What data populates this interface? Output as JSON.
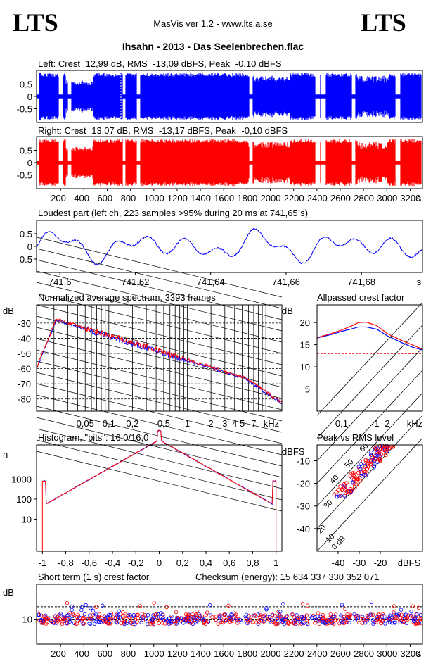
{
  "header": {
    "logo_left": "LTS",
    "logo_right": "LTS",
    "app_title": "MasVis ver 1.2 - www.lts.a.se",
    "file_title": "Ihsahn - 2013 - Das Seelenbrechen.flac"
  },
  "colors": {
    "left": "#0000ff",
    "right": "#ff0000",
    "axis": "#000000"
  },
  "chart_data": [
    {
      "type": "area",
      "id": "left_wave",
      "title": "Left: Crest=12,99 dB, RMS=-13,09 dBFS, Peak=-0,10 dBFS",
      "yticks": [
        "0.5",
        "0",
        "-0.5"
      ],
      "ylim": [
        -1,
        1
      ]
    },
    {
      "type": "area",
      "id": "right_wave",
      "title": "Right: Crest=13,07 dB, RMS=-13,17 dBFS, Peak=-0,10 dBFS",
      "yticks": [
        "0.5",
        "0",
        "-0.5"
      ],
      "ylim": [
        -1,
        1
      ],
      "xticks": [
        "200",
        "400",
        "600",
        "800",
        "1000",
        "1200",
        "1400",
        "1600",
        "1800",
        "2000",
        "2200",
        "2400",
        "2600",
        "2800",
        "3000",
        "3200"
      ],
      "xunit": "s",
      "xlim": [
        0,
        3300
      ]
    },
    {
      "type": "line",
      "id": "loudest",
      "title": "Loudest part (left  ch, 223 samples >95% during 20 ms at 741,65 s)",
      "yticks": [
        "0.5",
        "0",
        "-0.5"
      ],
      "xticks": [
        "741,6",
        "741,62",
        "741,64",
        "741,66",
        "741,68"
      ],
      "xunit": "s",
      "xlim": [
        741.594,
        741.696
      ]
    },
    {
      "type": "line",
      "id": "spectrum",
      "title": "Normalized average spectrum, 3393 frames",
      "ylabel": "dB",
      "yticks": [
        "-30",
        "-40",
        "-50",
        "-60",
        "-70",
        "-80"
      ],
      "xticks": [
        "0,05",
        "0,1",
        "0,2",
        "0,5",
        "1",
        "2",
        "3",
        "4",
        "5",
        "7"
      ],
      "xunit": "kHz"
    },
    {
      "type": "line",
      "id": "crest",
      "title": "Allpassed crest factor",
      "ylabel": "dB",
      "yticks": [
        "20",
        "15",
        "10",
        "5"
      ],
      "ylim": [
        0,
        24
      ],
      "xticks": [
        "0,1",
        "1",
        "2"
      ],
      "xunit": "kHz",
      "series": [
        {
          "name": "left",
          "x": [
            0.02,
            0.05,
            0.1,
            0.2,
            0.3,
            0.5,
            1,
            2,
            5,
            10,
            20
          ],
          "values": [
            16.5,
            17.3,
            18.0,
            18.6,
            19.0,
            19.0,
            18.5,
            17.0,
            15.5,
            14.5,
            13.8
          ]
        },
        {
          "name": "right",
          "x": [
            0.02,
            0.05,
            0.1,
            0.2,
            0.3,
            0.5,
            1,
            2,
            5,
            10,
            20
          ],
          "values": [
            16.6,
            17.5,
            18.3,
            19.3,
            20.0,
            20.1,
            19.3,
            17.5,
            16.0,
            15.0,
            14.0
          ]
        }
      ],
      "reference": 13
    },
    {
      "type": "line",
      "id": "histogram",
      "title": "Histogram, \"bits\": 16,0/16,0",
      "ylabel": "n",
      "yticks": [
        "1000",
        "100",
        "10"
      ],
      "xticks": [
        "-1",
        "-0,8",
        "-0,6",
        "-0,4",
        "-0,2",
        "0",
        "0,2",
        "0,4",
        "0,6",
        "0,8",
        "1"
      ],
      "xlim": [
        -1.05,
        1.05
      ]
    },
    {
      "type": "scatter",
      "id": "peak_rms",
      "title": "Peak vs RMS level",
      "ylabel": "dBFS",
      "xlabel": "dBFS",
      "yticks": [
        "-10",
        "-20",
        "-30",
        "-40"
      ],
      "xticks": [
        "-40",
        "-30",
        "-20"
      ],
      "diagonals": [
        "60",
        "50",
        "40",
        "30",
        "20",
        "10",
        "0 dB"
      ]
    },
    {
      "type": "scatter",
      "id": "short_crest",
      "title": "Short term (1 s) crest factor",
      "checksum": "Checksum (energy):  15 634 337 330 352 071",
      "ylabel": "dB",
      "yticks": [
        "10"
      ],
      "xticks": [
        "200",
        "400",
        "600",
        "800",
        "1000",
        "1200",
        "1400",
        "1600",
        "1800",
        "2000",
        "2200",
        "2400",
        "2600",
        "2800",
        "3000",
        "3200"
      ],
      "xunit": "s",
      "xlim": [
        0,
        3300
      ]
    }
  ]
}
